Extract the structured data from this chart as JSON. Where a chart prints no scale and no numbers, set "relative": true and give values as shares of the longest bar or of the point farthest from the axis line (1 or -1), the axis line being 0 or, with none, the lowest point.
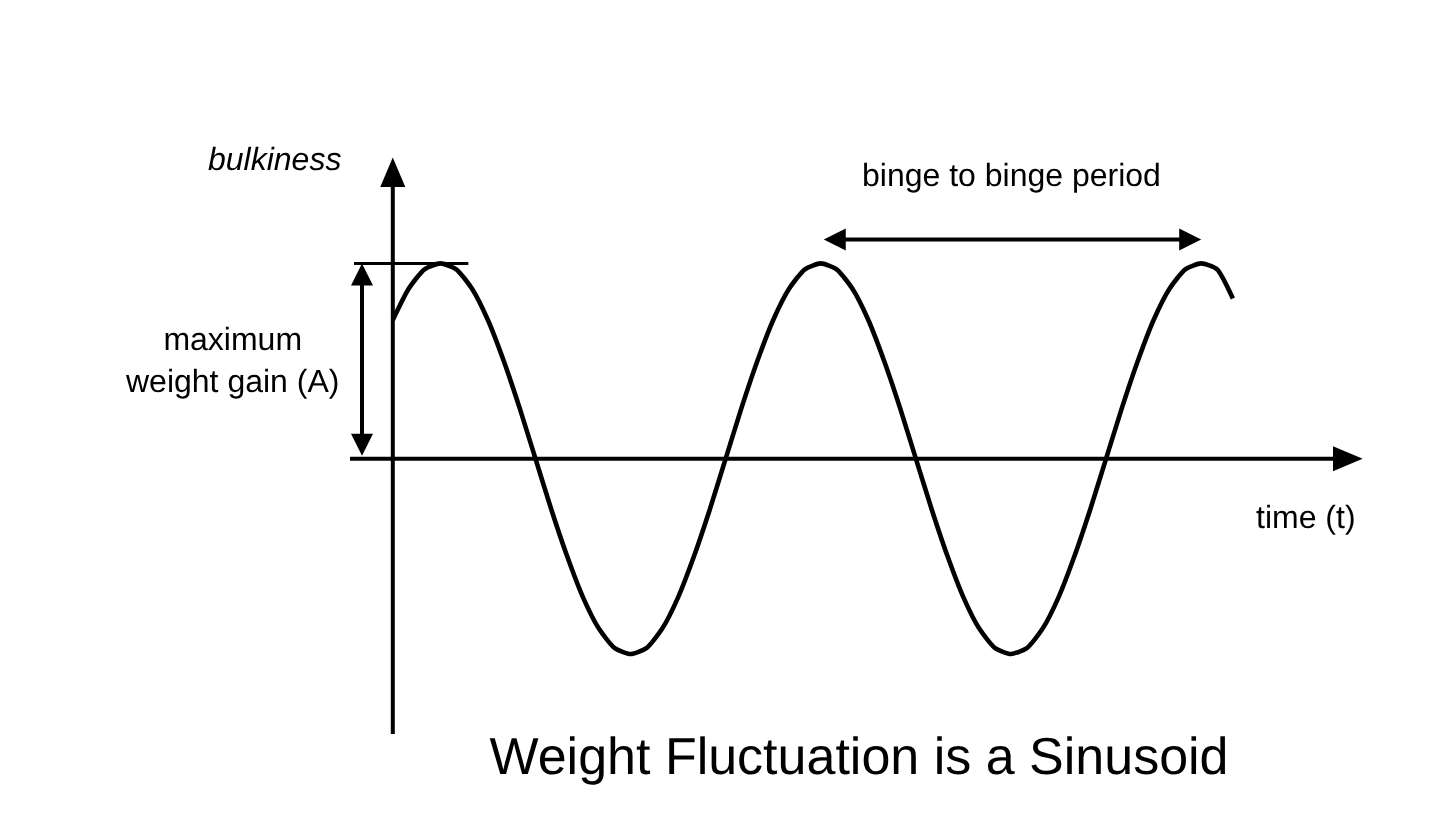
{
  "chart_data": {
    "type": "line",
    "relative": true,
    "title": "Weight Fluctuation is a Sinusoid",
    "xlabel": "time (t)",
    "ylabel": "bulkiness",
    "annotations": [
      "maximum weight gain (A)",
      "binge to binge period"
    ],
    "color": "#000000",
    "categories": [
      null,
      null,
      null,
      null,
      null,
      null,
      null,
      null,
      null,
      null,
      null,
      null,
      null,
      null,
      null,
      null,
      null,
      null,
      null,
      null,
      null,
      null,
      null,
      null,
      null,
      null,
      null,
      null,
      null,
      null,
      null,
      null,
      null,
      null,
      null,
      null,
      null,
      null,
      null,
      null,
      null,
      null,
      null,
      null,
      null,
      null,
      null,
      null,
      null,
      null,
      null,
      null,
      null,
      null
    ],
    "values": [
      0.71,
      0.87,
      0.97,
      1,
      0.97,
      0.87,
      0.71,
      0.5,
      0.26,
      0,
      -0.26,
      -0.5,
      -0.71,
      -0.87,
      -0.97,
      -1,
      -0.97,
      -0.87,
      -0.71,
      -0.5,
      -0.26,
      0,
      0.26,
      0.5,
      0.71,
      0.87,
      0.97,
      1,
      0.97,
      0.87,
      0.71,
      0.5,
      0.26,
      0,
      -0.26,
      -0.5,
      -0.71,
      -0.87,
      -0.97,
      -1,
      -0.97,
      -0.87,
      -0.71,
      -0.5,
      -0.26,
      0,
      0.26,
      0.5,
      0.71,
      0.87,
      0.97,
      1,
      0.97,
      0.82
    ]
  }
}
